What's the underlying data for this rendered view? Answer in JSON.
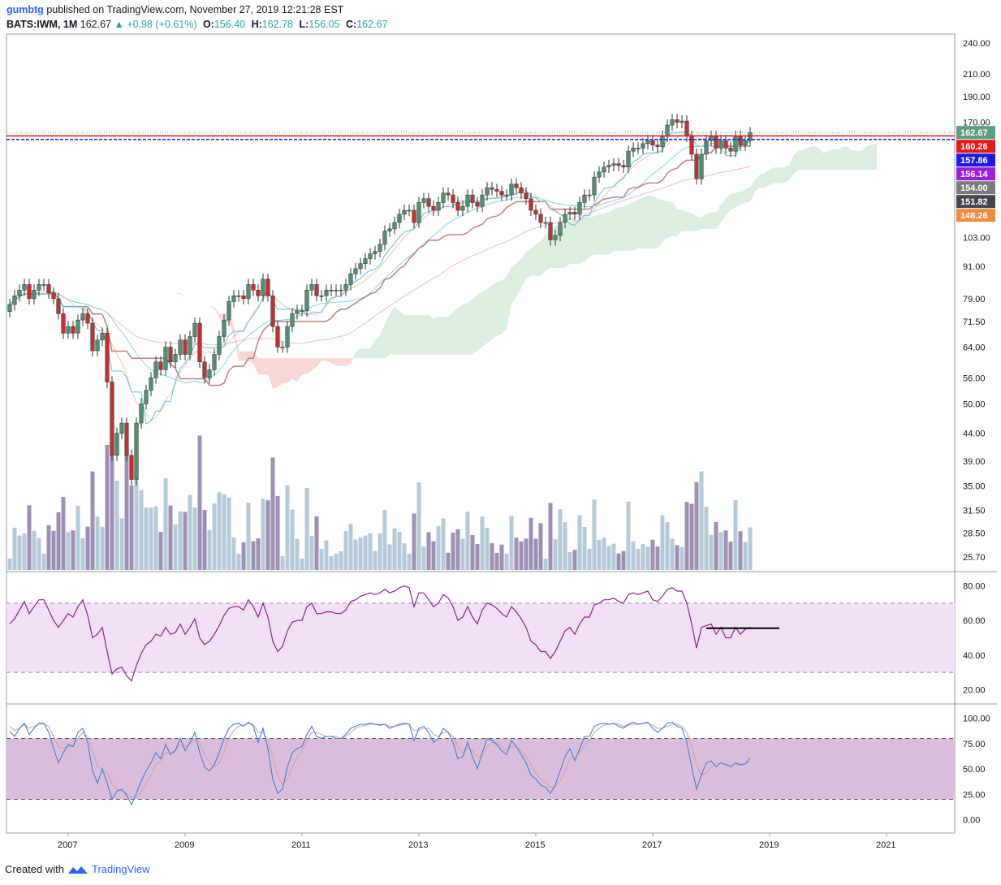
{
  "header": {
    "author": "gumbtg",
    "published_text": "published on TradingView.com, November 27, 2019 12:21:28 EST",
    "symbol": "BATS:IWM, 1M",
    "last": "162.67",
    "change": "▲ +0.98 (+0.61%)",
    "o_label": "O:",
    "o_val": "156.40",
    "h_label": "H:",
    "h_val": "162.78",
    "l_label": "L:",
    "l_val": "156.05",
    "c_label": "C:",
    "c_val": "162.67"
  },
  "footer": {
    "created_with": "Created with",
    "brand": "TradingView"
  },
  "colors": {
    "up": "#4e9070",
    "down": "#c62f2f",
    "kijun": "#c07f7f",
    "tenkan": "#5bc0de",
    "rsi": "#8e1f92",
    "stoch_k": "#3d7fe0",
    "stoch_d": "#d4a59a",
    "cloud_green": "#cfe8d4",
    "cloud_red": "#f8c9c9",
    "rsi_band": "#f2e1f6",
    "stoch_band": "#dcbcdc"
  },
  "chart_data": [
    {
      "type": "candlestick",
      "title": "BATS:IWM, 1M",
      "y_scale": "log",
      "ylim": [
        24,
        250
      ],
      "x_ticks": [
        "2007",
        "2009",
        "2011",
        "2013",
        "2015",
        "2017",
        "2019",
        "2021"
      ],
      "y_ticks": [
        "240.00",
        "210.00",
        "190.00",
        "170.00",
        "103.00",
        "91.00",
        "79.00",
        "71.50",
        "64.00",
        "56.00",
        "50.00",
        "44.00",
        "39.00",
        "35.00",
        "31.50",
        "28.50",
        "25.70"
      ],
      "price_labels": [
        {
          "value": "162.67",
          "color": "#5e9e7e"
        },
        {
          "value": "160.26",
          "color": "#e01b1b"
        },
        {
          "value": "157.86",
          "color": "#1a1ae8"
        },
        {
          "value": "156.14",
          "color": "#9b1de0"
        },
        {
          "value": "154.00",
          "color": "#7a7a7a"
        },
        {
          "value": "151.82",
          "color": "#434651"
        },
        {
          "value": "148.26",
          "color": "#f08c3c"
        }
      ],
      "horizontal_lines": [
        {
          "price": 160.26,
          "color": "#e01b1b"
        },
        {
          "price": 157.86,
          "color": "#1a1ae8"
        }
      ],
      "closes": [
        77,
        80,
        82,
        84,
        79,
        82,
        84,
        84,
        81,
        79,
        74,
        68,
        70,
        68,
        72,
        74,
        71,
        63,
        66,
        68,
        55,
        40,
        44,
        46,
        40,
        36,
        46,
        50,
        53,
        56,
        60,
        58,
        64,
        60,
        62,
        66,
        62,
        67,
        71,
        60,
        56,
        58,
        62,
        67,
        72,
        78,
        80,
        80,
        79,
        84,
        82,
        80,
        86,
        80,
        70,
        64,
        64,
        70,
        74,
        75,
        75,
        82,
        84,
        80,
        80,
        82,
        82,
        82,
        82,
        84,
        88,
        90,
        92,
        94,
        96,
        97,
        100,
        106,
        107,
        110,
        114,
        116,
        116,
        110,
        120,
        122,
        118,
        116,
        120,
        125,
        124,
        120,
        116,
        118,
        124,
        120,
        118,
        124,
        128,
        127,
        126,
        124,
        124,
        130,
        128,
        125,
        122,
        116,
        114,
        110,
        110,
        102,
        104,
        110,
        114,
        115,
        114,
        120,
        124,
        124,
        134,
        137,
        140,
        141,
        142,
        141,
        140,
        150,
        152,
        152,
        155,
        157,
        154,
        153,
        160,
        168,
        172,
        170,
        171,
        160,
        148,
        133,
        148,
        157,
        160,
        152,
        157,
        152,
        150,
        160,
        154,
        157,
        162.67
      ],
      "volume_note": "monthly volume histogram",
      "volume_axis": [
        "25.70"
      ]
    },
    {
      "type": "line",
      "title": "",
      "ylim": [
        15,
        85
      ],
      "y_ticks": [
        "80.00",
        "60.00",
        "40.00",
        "20.00"
      ],
      "band": [
        30,
        70
      ],
      "series": [
        {
          "values": [
            58,
            61,
            66,
            71,
            64,
            68,
            72,
            72,
            66,
            60,
            56,
            60,
            64,
            62,
            68,
            72,
            63,
            50,
            52,
            56,
            42,
            29,
            32,
            33,
            28,
            25,
            34,
            41,
            46,
            48,
            52,
            51,
            56,
            52,
            53,
            58,
            52,
            56,
            61,
            50,
            46,
            48,
            52,
            57,
            63,
            67,
            68,
            68,
            66,
            72,
            68,
            62,
            70,
            62,
            48,
            42,
            45,
            54,
            59,
            60,
            60,
            68,
            70,
            64,
            64,
            65,
            65,
            64,
            64,
            66,
            71,
            72,
            74,
            75,
            76,
            75,
            76,
            78,
            76,
            77,
            79,
            80,
            79,
            68,
            76,
            76,
            72,
            68,
            70,
            75,
            73,
            68,
            60,
            62,
            68,
            62,
            58,
            66,
            70,
            69,
            67,
            64,
            62,
            68,
            65,
            61,
            56,
            48,
            46,
            42,
            42,
            38,
            42,
            48,
            54,
            56,
            52,
            58,
            62,
            62,
            69,
            70,
            72,
            72,
            73,
            71,
            70,
            75,
            76,
            75,
            76,
            77,
            72,
            71,
            74,
            78,
            79,
            77,
            77,
            70,
            58,
            44,
            56,
            57,
            58,
            52,
            56,
            50,
            50,
            56,
            52,
            55,
            56
          ]
        }
      ],
      "annotation_line": {
        "from_value": 55.5,
        "color": "#000000"
      }
    },
    {
      "type": "line",
      "title": "",
      "ylim": [
        -10,
        110
      ],
      "y_ticks": [
        "100.00",
        "75.00",
        "50.00",
        "25.00",
        "0.00"
      ],
      "band": [
        20,
        80
      ],
      "series": [
        {
          "values": [
            87,
            82,
            90,
            95,
            84,
            90,
            95,
            95,
            86,
            70,
            56,
            66,
            74,
            72,
            86,
            90,
            76,
            48,
            36,
            50,
            36,
            20,
            28,
            30,
            24,
            15,
            26,
            38,
            48,
            56,
            66,
            60,
            74,
            64,
            68,
            80,
            68,
            76,
            86,
            66,
            52,
            48,
            54,
            66,
            80,
            90,
            94,
            95,
            92,
            96,
            92,
            76,
            90,
            70,
            40,
            26,
            30,
            52,
            66,
            70,
            72,
            84,
            92,
            82,
            80,
            82,
            82,
            80,
            80,
            84,
            90,
            92,
            94,
            94,
            95,
            94,
            93,
            94,
            90,
            92,
            94,
            95,
            94,
            78,
            90,
            92,
            86,
            76,
            80,
            90,
            86,
            76,
            60,
            62,
            76,
            62,
            50,
            66,
            80,
            78,
            74,
            68,
            64,
            78,
            72,
            64,
            56,
            44,
            40,
            34,
            32,
            26,
            34,
            48,
            62,
            70,
            58,
            70,
            82,
            82,
            92,
            94,
            95,
            94,
            95,
            92,
            90,
            94,
            96,
            94,
            95,
            96,
            90,
            86,
            90,
            95,
            96,
            92,
            90,
            76,
            52,
            30,
            44,
            56,
            58,
            52,
            56,
            54,
            52,
            56,
            54,
            55,
            61
          ]
        },
        {
          "values": [
            92,
            88,
            90,
            94,
            90,
            92,
            94,
            94,
            92,
            82,
            72,
            70,
            72,
            72,
            80,
            86,
            82,
            68,
            52,
            50,
            46,
            36,
            30,
            28,
            26,
            22,
            22,
            28,
            36,
            44,
            54,
            58,
            66,
            66,
            68,
            74,
            72,
            74,
            80,
            76,
            64,
            56,
            52,
            56,
            66,
            80,
            88,
            92,
            93,
            95,
            94,
            86,
            86,
            78,
            62,
            44,
            34,
            40,
            52,
            62,
            68,
            78,
            86,
            86,
            84,
            82,
            82,
            82,
            80,
            82,
            86,
            90,
            92,
            93,
            94,
            94,
            94,
            94,
            92,
            92,
            93,
            94,
            94,
            88,
            88,
            90,
            90,
            84,
            82,
            86,
            86,
            82,
            72,
            66,
            70,
            68,
            62,
            62,
            72,
            76,
            76,
            72,
            68,
            72,
            72,
            68,
            62,
            54,
            46,
            40,
            36,
            32,
            32,
            38,
            48,
            60,
            62,
            66,
            74,
            78,
            86,
            90,
            93,
            94,
            95,
            94,
            92,
            93,
            94,
            94,
            95,
            95,
            93,
            90,
            90,
            92,
            94,
            94,
            92,
            86,
            72,
            54,
            44,
            46,
            52,
            55,
            56,
            55,
            54,
            54,
            54,
            55,
            57
          ]
        }
      ]
    }
  ]
}
